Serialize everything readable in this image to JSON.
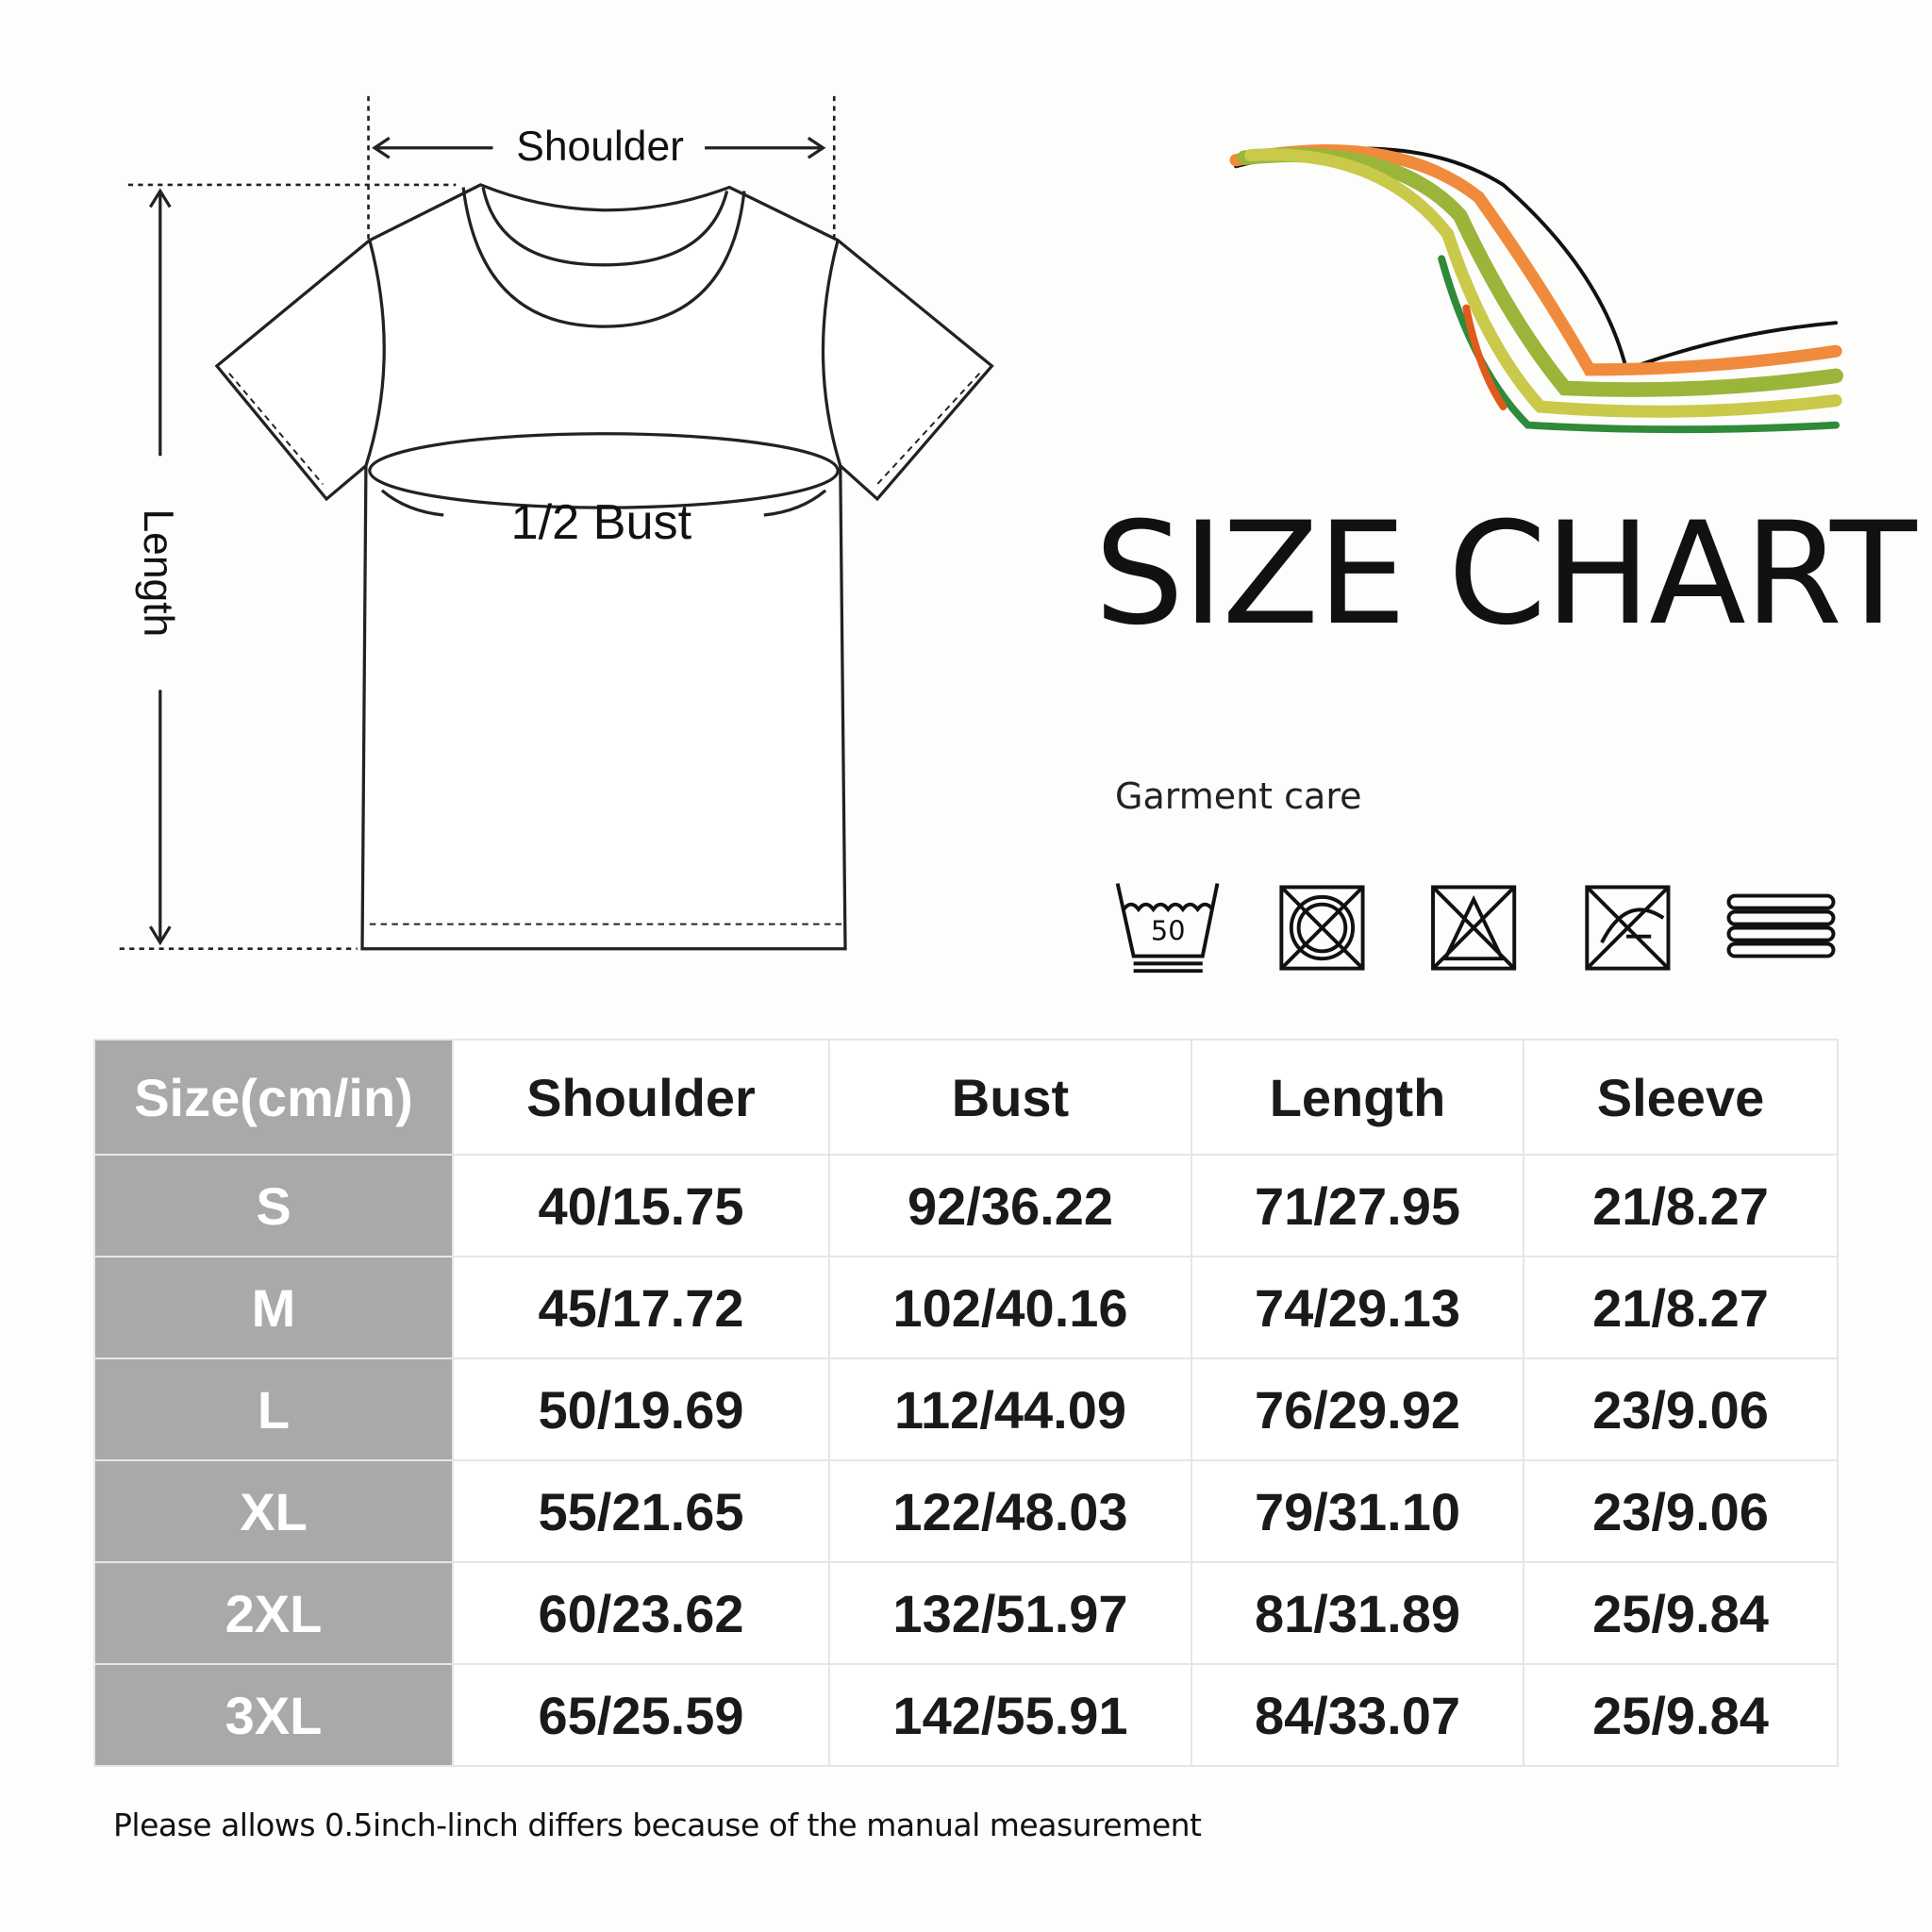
{
  "diagram": {
    "shoulder_label": "Shoulder",
    "bust_label": "1/2 Bust",
    "length_label": "Length"
  },
  "title": "SIZE CHART",
  "care": {
    "label": "Garment care",
    "icons": [
      "wash-50-icon",
      "do-not-tumble-dry-icon",
      "do-not-bleach-icon",
      "do-not-dry-clean-icon",
      "dry-flat-icon"
    ],
    "wash_temp": "50"
  },
  "table": {
    "headers": [
      "Size(cm/in)",
      "Shoulder",
      "Bust",
      "Length",
      "Sleeve"
    ],
    "rows": [
      [
        "S",
        "40/15.75",
        "92/36.22",
        "71/27.95",
        "21/8.27"
      ],
      [
        "M",
        "45/17.72",
        "102/40.16",
        "74/29.13",
        "21/8.27"
      ],
      [
        "L",
        "50/19.69",
        "112/44.09",
        "76/29.92",
        "23/9.06"
      ],
      [
        "XL",
        "55/21.65",
        "122/48.03",
        "79/31.10",
        "23/9.06"
      ],
      [
        "2XL",
        "60/23.62",
        "132/51.97",
        "81/31.89",
        "25/9.84"
      ],
      [
        "3XL",
        "65/25.59",
        "142/55.91",
        "84/33.07",
        "25/9.84"
      ]
    ]
  },
  "note": "Please allows 0.5inch-linch differs because of the manual measurement",
  "colors": {
    "size_column": "#a9a9a9",
    "swoosh": [
      "#e05a1c",
      "#f08a3c",
      "#9bb53a",
      "#c9c94a",
      "#2f8a3a",
      "#111111"
    ]
  }
}
